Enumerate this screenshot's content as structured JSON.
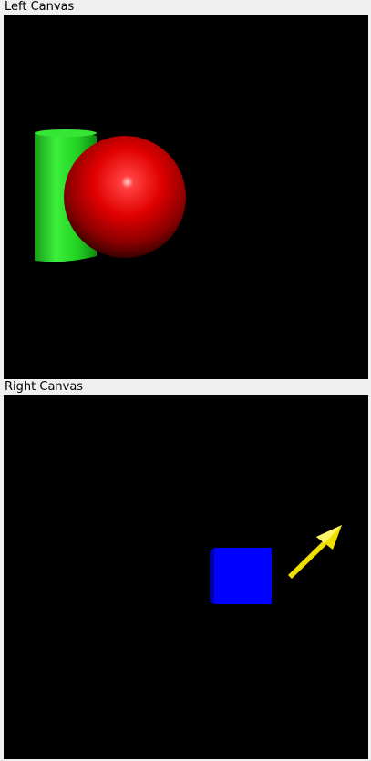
{
  "window": {
    "left_canvas": {
      "label": "Left Canvas",
      "background": "#000000",
      "objects": [
        {
          "shape": "cylinder",
          "color": "#00d400"
        },
        {
          "shape": "sphere",
          "color": "#e00000"
        }
      ]
    },
    "right_canvas": {
      "label": "Right Canvas",
      "background": "#000000",
      "objects": [
        {
          "shape": "cube",
          "color": "#0000ff"
        },
        {
          "shape": "arrow",
          "color": "#f0e000"
        }
      ]
    }
  }
}
